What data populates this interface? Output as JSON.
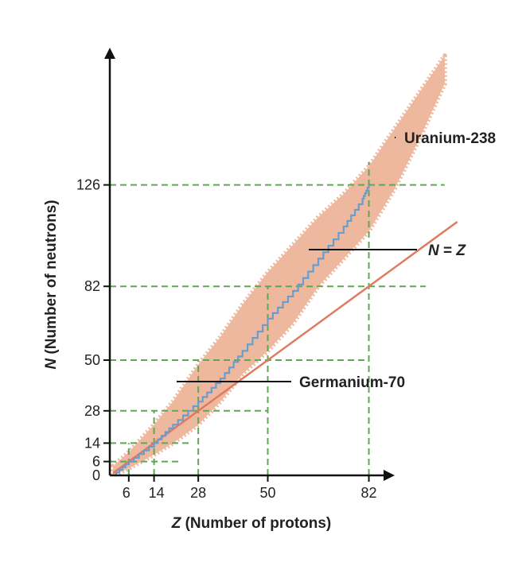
{
  "chart_data": {
    "type": "area",
    "xlabel_var": "Z",
    "xlabel_text": "(Number of protons)",
    "ylabel_var": "N",
    "ylabel_text": "(Number of neutrons)",
    "x_ticks": [
      6,
      14,
      28,
      50,
      82
    ],
    "y_ticks": [
      0,
      6,
      14,
      28,
      50,
      82,
      126
    ],
    "xlim": [
      0,
      135
    ],
    "ylim": [
      0,
      190
    ],
    "magic_numbers": [
      6,
      14,
      28,
      50,
      82,
      126
    ],
    "series": [
      {
        "kind": "band",
        "color": "#eeb89e",
        "points": [
          {
            "z": 1,
            "n_low": 0,
            "n_high": 4
          },
          {
            "z": 6,
            "n_low": 3,
            "n_high": 10
          },
          {
            "z": 14,
            "n_low": 9,
            "n_high": 22
          },
          {
            "z": 20,
            "n_low": 14,
            "n_high": 32
          },
          {
            "z": 28,
            "n_low": 22,
            "n_high": 48
          },
          {
            "z": 35,
            "n_low": 32,
            "n_high": 60
          },
          {
            "z": 42,
            "n_low": 44,
            "n_high": 74
          },
          {
            "z": 50,
            "n_low": 54,
            "n_high": 88
          },
          {
            "z": 58,
            "n_low": 66,
            "n_high": 100
          },
          {
            "z": 66,
            "n_low": 82,
            "n_high": 112
          },
          {
            "z": 74,
            "n_low": 94,
            "n_high": 122
          },
          {
            "z": 82,
            "n_low": 106,
            "n_high": 134
          },
          {
            "z": 90,
            "n_low": 124,
            "n_high": 150
          },
          {
            "z": 98,
            "n_low": 146,
            "n_high": 166
          },
          {
            "z": 106,
            "n_low": 170,
            "n_high": 182
          }
        ]
      },
      {
        "kind": "line",
        "color": "#6b9ccc",
        "points": [
          {
            "z": 1,
            "n": 0
          },
          {
            "z": 6,
            "n": 6
          },
          {
            "z": 14,
            "n": 14
          },
          {
            "z": 20,
            "n": 22
          },
          {
            "z": 28,
            "n": 32
          },
          {
            "z": 35,
            "n": 42
          },
          {
            "z": 42,
            "n": 54
          },
          {
            "z": 50,
            "n": 68
          },
          {
            "z": 58,
            "n": 80
          },
          {
            "z": 66,
            "n": 94
          },
          {
            "z": 74,
            "n": 108
          },
          {
            "z": 80,
            "n": 120
          },
          {
            "z": 82,
            "n": 126
          }
        ]
      },
      {
        "kind": "identity",
        "color": "#e07a5f",
        "points": [
          {
            "z": 1,
            "n": 1
          },
          {
            "z": 110,
            "n": 110
          }
        ]
      }
    ],
    "annotations": [
      {
        "id": "uranium",
        "text": "Uranium-238",
        "z": 92,
        "n": 146
      },
      {
        "id": "nz",
        "text_var": "N",
        "text_rest": " = ",
        "text_var2": "Z",
        "z": 90,
        "n": 90
      },
      {
        "id": "germanium",
        "text": "Germanium-70",
        "z": 32,
        "n": 38
      }
    ],
    "guide_color": "#5fa853"
  }
}
